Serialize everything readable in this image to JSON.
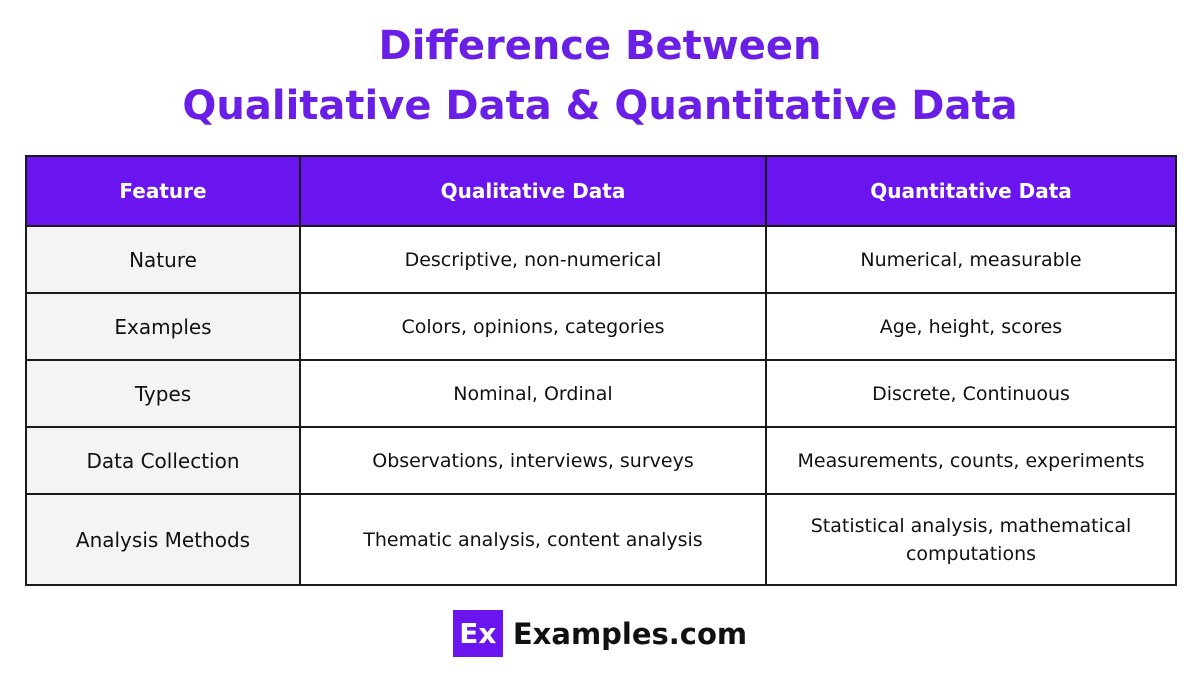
{
  "header": {
    "title": [
      "Difference Between",
      "Qualitative Data & Quantitative Data"
    ]
  },
  "table": {
    "columns": [
      "Feature",
      "Qualitative Data",
      "Quantitative Data"
    ],
    "rows": [
      [
        "Nature",
        "Descriptive, non-numerical",
        "Numerical, measurable"
      ],
      [
        "Examples",
        "Colors, opinions, categories",
        "Age, height, scores"
      ],
      [
        "Types",
        "Nominal, Ordinal",
        "Discrete, Continuous"
      ],
      [
        "Data Collection",
        "Observations, interviews, surveys",
        "Measurements, counts, experiments"
      ],
      [
        "Analysis Methods",
        "Thematic analysis, content analysis",
        "Statistical analysis, mathematical computations"
      ]
    ]
  },
  "footer": {
    "logo": "Ex",
    "site": "Examples.com"
  }
}
